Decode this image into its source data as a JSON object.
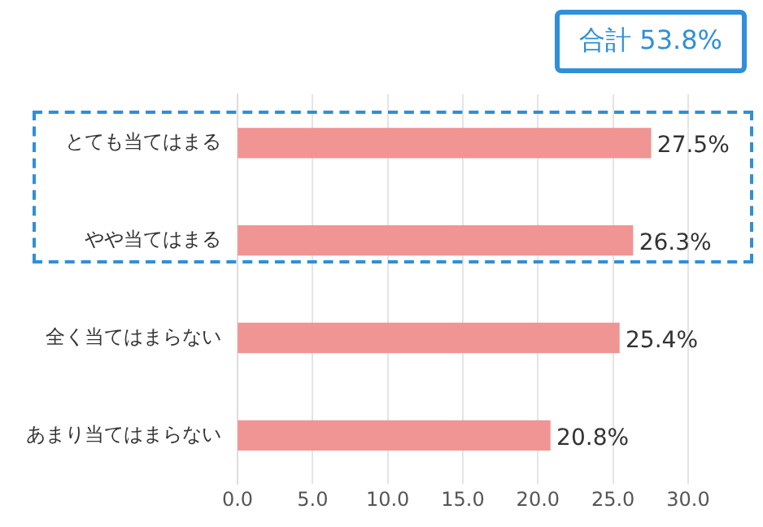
{
  "chart_data": {
    "type": "bar",
    "orientation": "horizontal",
    "categories": [
      "とても当てはまる",
      "やや当てはまる",
      "全く当てはまらない",
      "あまり当てはまらない"
    ],
    "values": [
      27.5,
      26.3,
      25.4,
      20.8
    ],
    "color": "#f09494",
    "value_labels": [
      "27.5%",
      "26.3%",
      "25.4%",
      "20.8%"
    ],
    "xlim": [
      0,
      30
    ],
    "xticks": [
      {
        "value": 0,
        "label": "0.0"
      },
      {
        "value": 5,
        "label": "5.0"
      },
      {
        "value": 10,
        "label": "10.0"
      },
      {
        "value": 15,
        "label": "15.0"
      },
      {
        "value": 20,
        "label": "20.0"
      },
      {
        "value": 25,
        "label": "25.0"
      },
      {
        "value": 30,
        "label": "30.0"
      }
    ],
    "grid": "x",
    "legend": false,
    "annotations": [
      "合計 53.8%"
    ]
  }
}
